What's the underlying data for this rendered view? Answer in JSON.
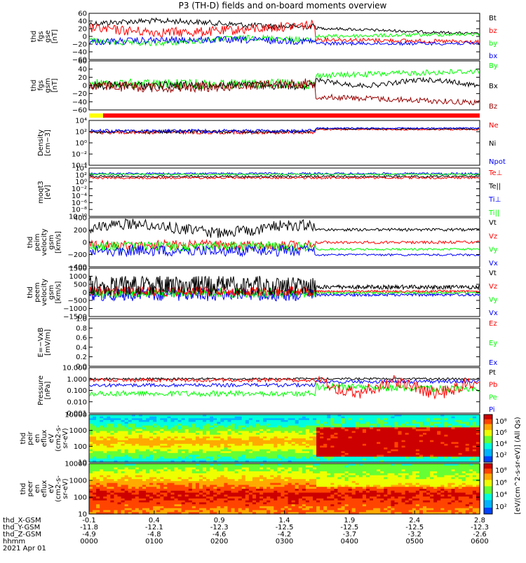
{
  "title": "P3 (TH-D) fields and on-board moments overview",
  "colors": {
    "black": "#000000",
    "red": "#ff0000",
    "green": "#00ff00",
    "blue": "#0000ff",
    "darkred": "#990000",
    "yellow": "#ffff00"
  },
  "chart_data": {
    "type": "line",
    "xaxis": {
      "ticks": [
        {
          "x": "-0.1",
          "y": "-11.8",
          "z": "-4.9",
          "hhmm": "0000"
        },
        {
          "x": "0.4",
          "y": "-12.1",
          "z": "-4.8",
          "hhmm": "0100"
        },
        {
          "x": "0.9",
          "y": "-12.3",
          "z": "-4.6",
          "hhmm": "0200"
        },
        {
          "x": "1.4",
          "y": "-12.5",
          "z": "-4.2",
          "hhmm": "0300"
        },
        {
          "x": "1.9",
          "y": "-12.5",
          "z": "-3.7",
          "hhmm": "0400"
        },
        {
          "x": "2.4",
          "y": "-12.5",
          "z": "-3.2",
          "hhmm": "0500"
        },
        {
          "x": "2.8",
          "y": "-12.3",
          "z": "-2.6",
          "hhmm": "0600"
        }
      ],
      "row_labels": [
        "thd_X-GSM",
        "thd_Y-GSM",
        "thd_Z-GSM",
        "hhmm"
      ],
      "date": "2021 Apr 01"
    },
    "panels": [
      {
        "ylabel": [
          "thd",
          "fgs",
          "gse",
          "[nT]"
        ],
        "ticks": [
          "60",
          "40",
          "20",
          "0",
          "−20",
          "−40",
          "−60"
        ],
        "legend": [
          {
            "name": "Bt",
            "color": "#000000"
          },
          {
            "name": "bz",
            "color": "#ff0000"
          },
          {
            "name": "by",
            "color": "#00ff00"
          },
          {
            "name": "bx",
            "color": "#0000ff"
          }
        ]
      },
      {
        "ylabel": [
          "thd",
          "fgs",
          "gsm",
          "[nT]"
        ],
        "ticks": [
          "60",
          "40",
          "20",
          "0",
          "−20",
          "−40",
          "−60"
        ],
        "legend": [
          {
            "name": "By",
            "color": "#00ff00"
          },
          {
            "name": "Bx",
            "color": "#000000"
          },
          {
            "name": "Bz",
            "color": "#990000"
          }
        ]
      },
      {
        "ylabel": [
          "Density",
          "[cm−3]"
        ],
        "ticks": [
          "10⁴",
          "10²",
          "10⁰",
          "10⁻²",
          "10⁻⁴"
        ],
        "legend": [
          {
            "name": "Ne",
            "color": "#ff0000"
          },
          {
            "name": "Ni",
            "color": "#000000"
          },
          {
            "name": "Npot",
            "color": "#0000ff"
          }
        ]
      },
      {
        "ylabel": [
          "moqt3",
          "[eV]"
        ],
        "ticks": [
          "10⁴",
          "10²",
          "10⁰",
          "10⁻²",
          "10⁻⁴",
          "10⁻⁶",
          "10⁻⁸",
          "10⁻¹⁰"
        ],
        "legend": [
          {
            "name": "Te⊥",
            "color": "#ff0000"
          },
          {
            "name": "Te||",
            "color": "#000000"
          },
          {
            "name": "Ti⊥",
            "color": "#0000ff"
          },
          {
            "name": "Ti||",
            "color": "#00ff00"
          }
        ]
      },
      {
        "ylabel": [
          "thd",
          "peim",
          "velocity",
          "gsm",
          "[km/s]"
        ],
        "ticks": [
          "400",
          "200",
          "0",
          "−200",
          "−400"
        ],
        "legend": [
          {
            "name": "Vt",
            "color": "#000000"
          },
          {
            "name": "Vz",
            "color": "#ff0000"
          },
          {
            "name": "Vy",
            "color": "#00ff00"
          },
          {
            "name": "Vx",
            "color": "#0000ff"
          }
        ]
      },
      {
        "ylabel": [
          "thd",
          "peem",
          "velocity",
          "gsm",
          "[km/s]"
        ],
        "ticks": [
          "1500",
          "1000",
          "500",
          "0",
          "−500",
          "−1000",
          "−1500"
        ],
        "legend": [
          {
            "name": "Vt",
            "color": "#000000"
          },
          {
            "name": "Vz",
            "color": "#ff0000"
          },
          {
            "name": "Vy",
            "color": "#00ff00"
          },
          {
            "name": "Vx",
            "color": "#0000ff"
          }
        ]
      },
      {
        "ylabel": [
          "E=−VxB",
          "[mV/m]"
        ],
        "ticks": [
          "1.0",
          "0.8",
          "0.6",
          "0.4",
          "0.2",
          "0.0"
        ],
        "legend": [
          {
            "name": "Ez",
            "color": "#ff0000"
          },
          {
            "name": "Ey",
            "color": "#00ff00"
          },
          {
            "name": "Ex",
            "color": "#0000ff"
          }
        ]
      },
      {
        "ylabel": [
          "Pressure",
          "[nPa]"
        ],
        "ticks": [
          "10.000",
          "1.000",
          "0.100",
          "0.010",
          "0.001"
        ],
        "legend": [
          {
            "name": "Pt",
            "color": "#000000"
          },
          {
            "name": "Pb",
            "color": "#ff0000"
          },
          {
            "name": "Pe",
            "color": "#00ff00"
          },
          {
            "name": "Pi",
            "color": "#0000ff"
          }
        ]
      },
      {
        "type": "heatmap",
        "ylabel": [
          "thd",
          "peir",
          "en",
          "eflux",
          "eV",
          "(cm2-s-",
          "sr-eV)"
        ],
        "ticks": [
          "10000",
          "1000",
          "100",
          "10"
        ],
        "colorbar_ticks": [
          "10⁸",
          "10⁶",
          "10⁴",
          "10²"
        ]
      },
      {
        "type": "heatmap",
        "ylabel": [
          "thd",
          "peer",
          "en",
          "eflux",
          "eV",
          "(cm2-s-",
          "sr-eV)"
        ],
        "ticks": [
          "10000",
          "1000",
          "100",
          "10"
        ],
        "colorbar_ticks": [
          "10⁸",
          "10⁶",
          "10⁴",
          "10²"
        ]
      }
    ],
    "colorbar_label": "[eV/(cm^2-s-sr-eV)] (All Qs)"
  }
}
